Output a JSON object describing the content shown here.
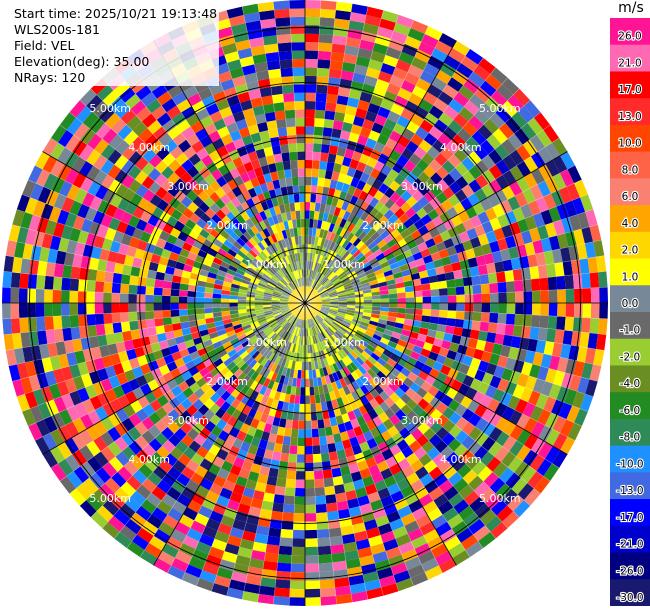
{
  "info": {
    "start_time": "Start time: 2025/10/21 19:13:48",
    "instrument": "WLS200s-181",
    "field": "Field: VEL",
    "elevation": "Elevation(deg): 35.00",
    "nrays": "NRays: 120"
  },
  "chart_data": {
    "type": "heatmap",
    "plot": "PPI scan (polar)",
    "field": "VEL",
    "units": "m/s",
    "nrays": 120,
    "elevation_deg": 35.0,
    "range_rings_km": [
      1.0,
      2.0,
      3.0,
      4.0,
      5.0
    ],
    "range_labels": [
      "1.00km",
      "2.00km",
      "3.00km",
      "4.00km",
      "5.00km"
    ],
    "colorbar": {
      "label": "m/s",
      "ticks": [
        "26.0",
        "21.0",
        "17.0",
        "13.0",
        "10.0",
        "8.0",
        "6.0",
        "4.0",
        "2.0",
        "1.0",
        "0.0",
        "-1.0",
        "-2.0",
        "-4.0",
        "-6.0",
        "-8.0",
        "-10.0",
        "-13.0",
        "-17.0",
        "-21.0",
        "-26.0",
        "-30.0"
      ],
      "colors": [
        "#ff1493",
        "#ff69b4",
        "#ff0000",
        "#ff2a2a",
        "#ff4500",
        "#ff6347",
        "#fa8072",
        "#ffa500",
        "#ffd700",
        "#ffff00",
        "#778899",
        "#696969",
        "#9acd32",
        "#6b8e23",
        "#228b22",
        "#2e8b57",
        "#1e90ff",
        "#4169e1",
        "#0000ff",
        "#0000cd",
        "#000080",
        "#191970"
      ]
    },
    "notes": "Velocity field appears noisy; near-range bins mostly yellow/olive (about 0 to 2 m/s), outer bins randomly colored across the full scale."
  }
}
